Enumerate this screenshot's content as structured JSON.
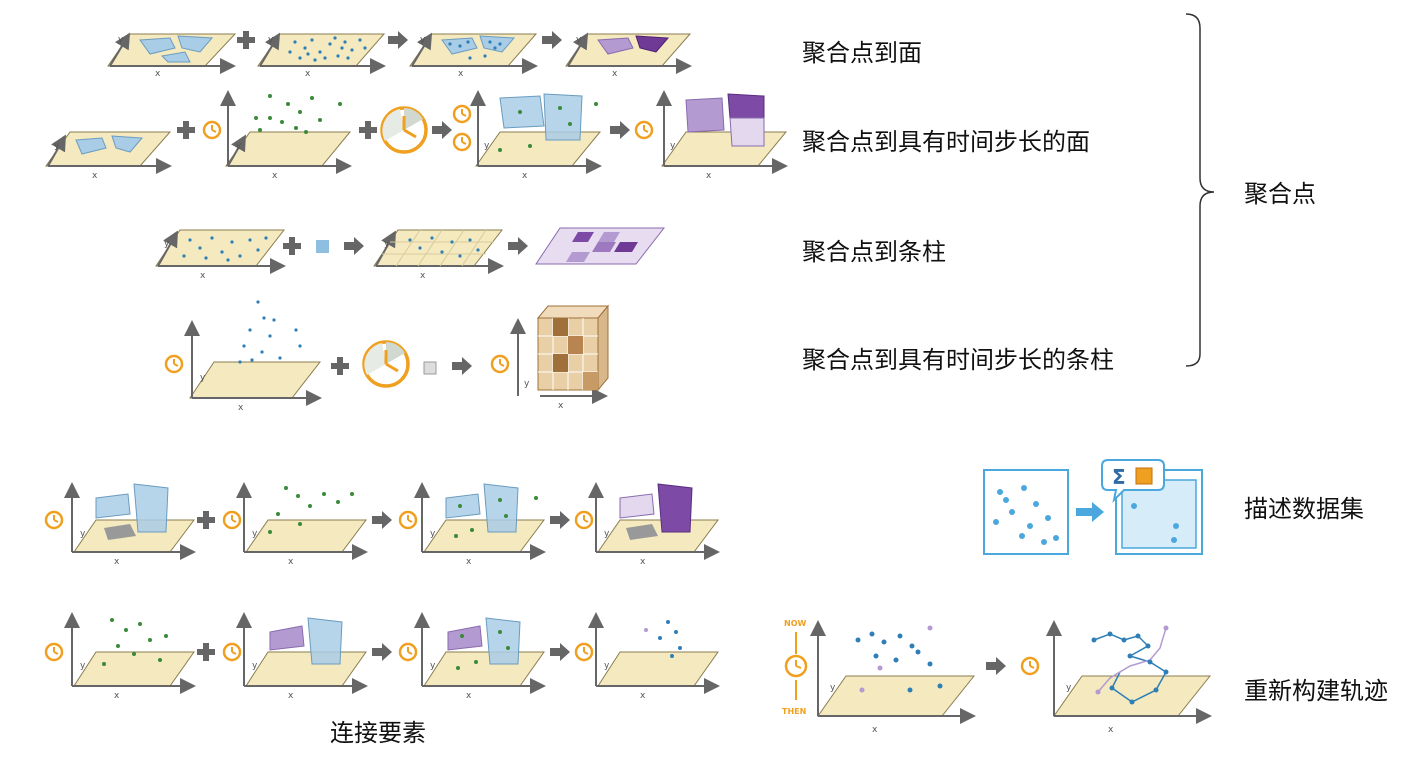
{
  "labels": {
    "aggregate_points_to_polygons": "聚合点到面",
    "aggregate_points_to_polygons_time": "聚合点到具有时间步长的面",
    "aggregate_points_to_bins": "聚合点到条柱",
    "aggregate_points_to_bins_time": "聚合点到具有时间步长的条柱",
    "aggregate_points_group": "聚合点",
    "join_features": "连接要素",
    "describe_dataset": "描述数据集",
    "reconstruct_tracks": "重新构建轨迹"
  },
  "axes": {
    "x": "x",
    "y": "y"
  },
  "time_labels": {
    "now": "NOW",
    "then": "THEN"
  },
  "symbols": {
    "plus": "+",
    "sigma": "Σ"
  },
  "colors": {
    "plane_fill": "#f4e9bf",
    "plane_stroke": "#8a7d4f",
    "axis": "#666666",
    "polygon_blue": "#a9cde6",
    "polygon_purple": "#b39bd1",
    "polygon_dark_purple": "#6e3a96",
    "point_blue": "#2e7fb8",
    "point_green": "#3a8a3a",
    "clock_orange": "#f0a020",
    "brown": "#a0703a",
    "arrow_gray": "#666666",
    "describe_blue": "#4aa8de"
  }
}
